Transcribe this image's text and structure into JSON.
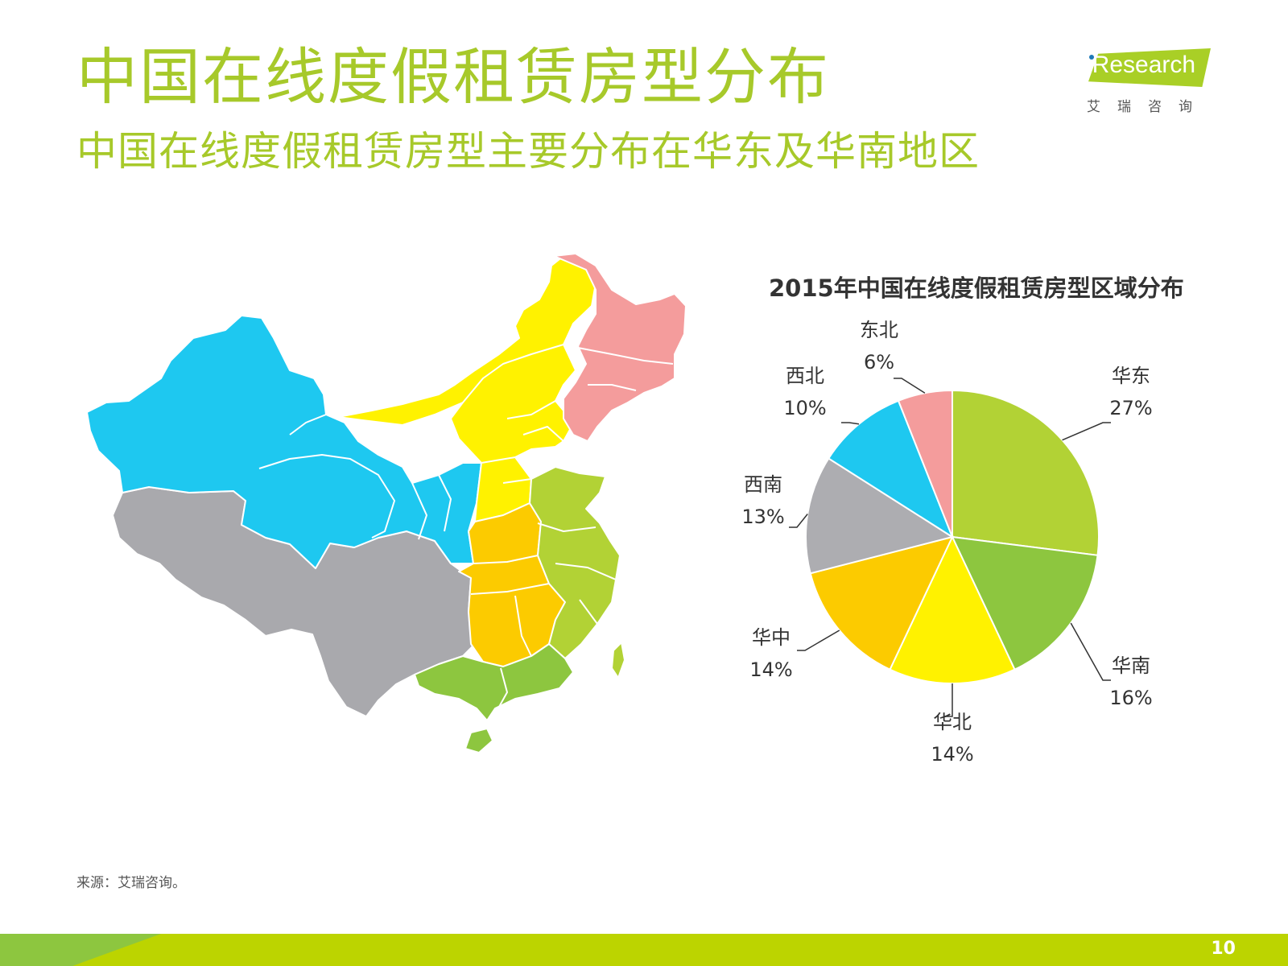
{
  "header": {
    "title": "中国在线度假租赁房型分布",
    "subtitle": "中国在线度假租赁房型主要分布在华东及华南地区"
  },
  "logo": {
    "brand": "iResearch",
    "brand_cn": "艾瑞咨询",
    "color": "#a9cf26"
  },
  "map": {
    "regions": [
      {
        "name": "西北",
        "color": "#1ec8f0"
      },
      {
        "name": "东北",
        "color": "#f49c9c"
      },
      {
        "name": "华北",
        "color": "#fff200"
      },
      {
        "name": "西南",
        "color": "#a9a9ad"
      },
      {
        "name": "华中",
        "color": "#fccb00"
      },
      {
        "name": "华东",
        "color": "#b2d235"
      },
      {
        "name": "华南",
        "color": "#8dc63f"
      }
    ]
  },
  "chart_data": {
    "type": "pie",
    "title": "2015年中国在线度假租赁房型区域分布",
    "start_angle_deg": 0,
    "direction": "clockwise",
    "slices": [
      {
        "label": "华东",
        "value": 27,
        "display": "27%",
        "color": "#b2d235"
      },
      {
        "label": "华南",
        "value": 16,
        "display": "16%",
        "color": "#8dc63f"
      },
      {
        "label": "华北",
        "value": 14,
        "display": "14%",
        "color": "#fff200"
      },
      {
        "label": "华中",
        "value": 14,
        "display": "14%",
        "color": "#fccb00"
      },
      {
        "label": "西南",
        "value": 13,
        "display": "13%",
        "color": "#adadb1"
      },
      {
        "label": "西北",
        "value": 10,
        "display": "10%",
        "color": "#1ec8f0"
      },
      {
        "label": "东北",
        "value": 6,
        "display": "6%",
        "color": "#f49c9c"
      }
    ]
  },
  "footer": {
    "source": "来源：艾瑞咨询。",
    "page_number": "10"
  }
}
